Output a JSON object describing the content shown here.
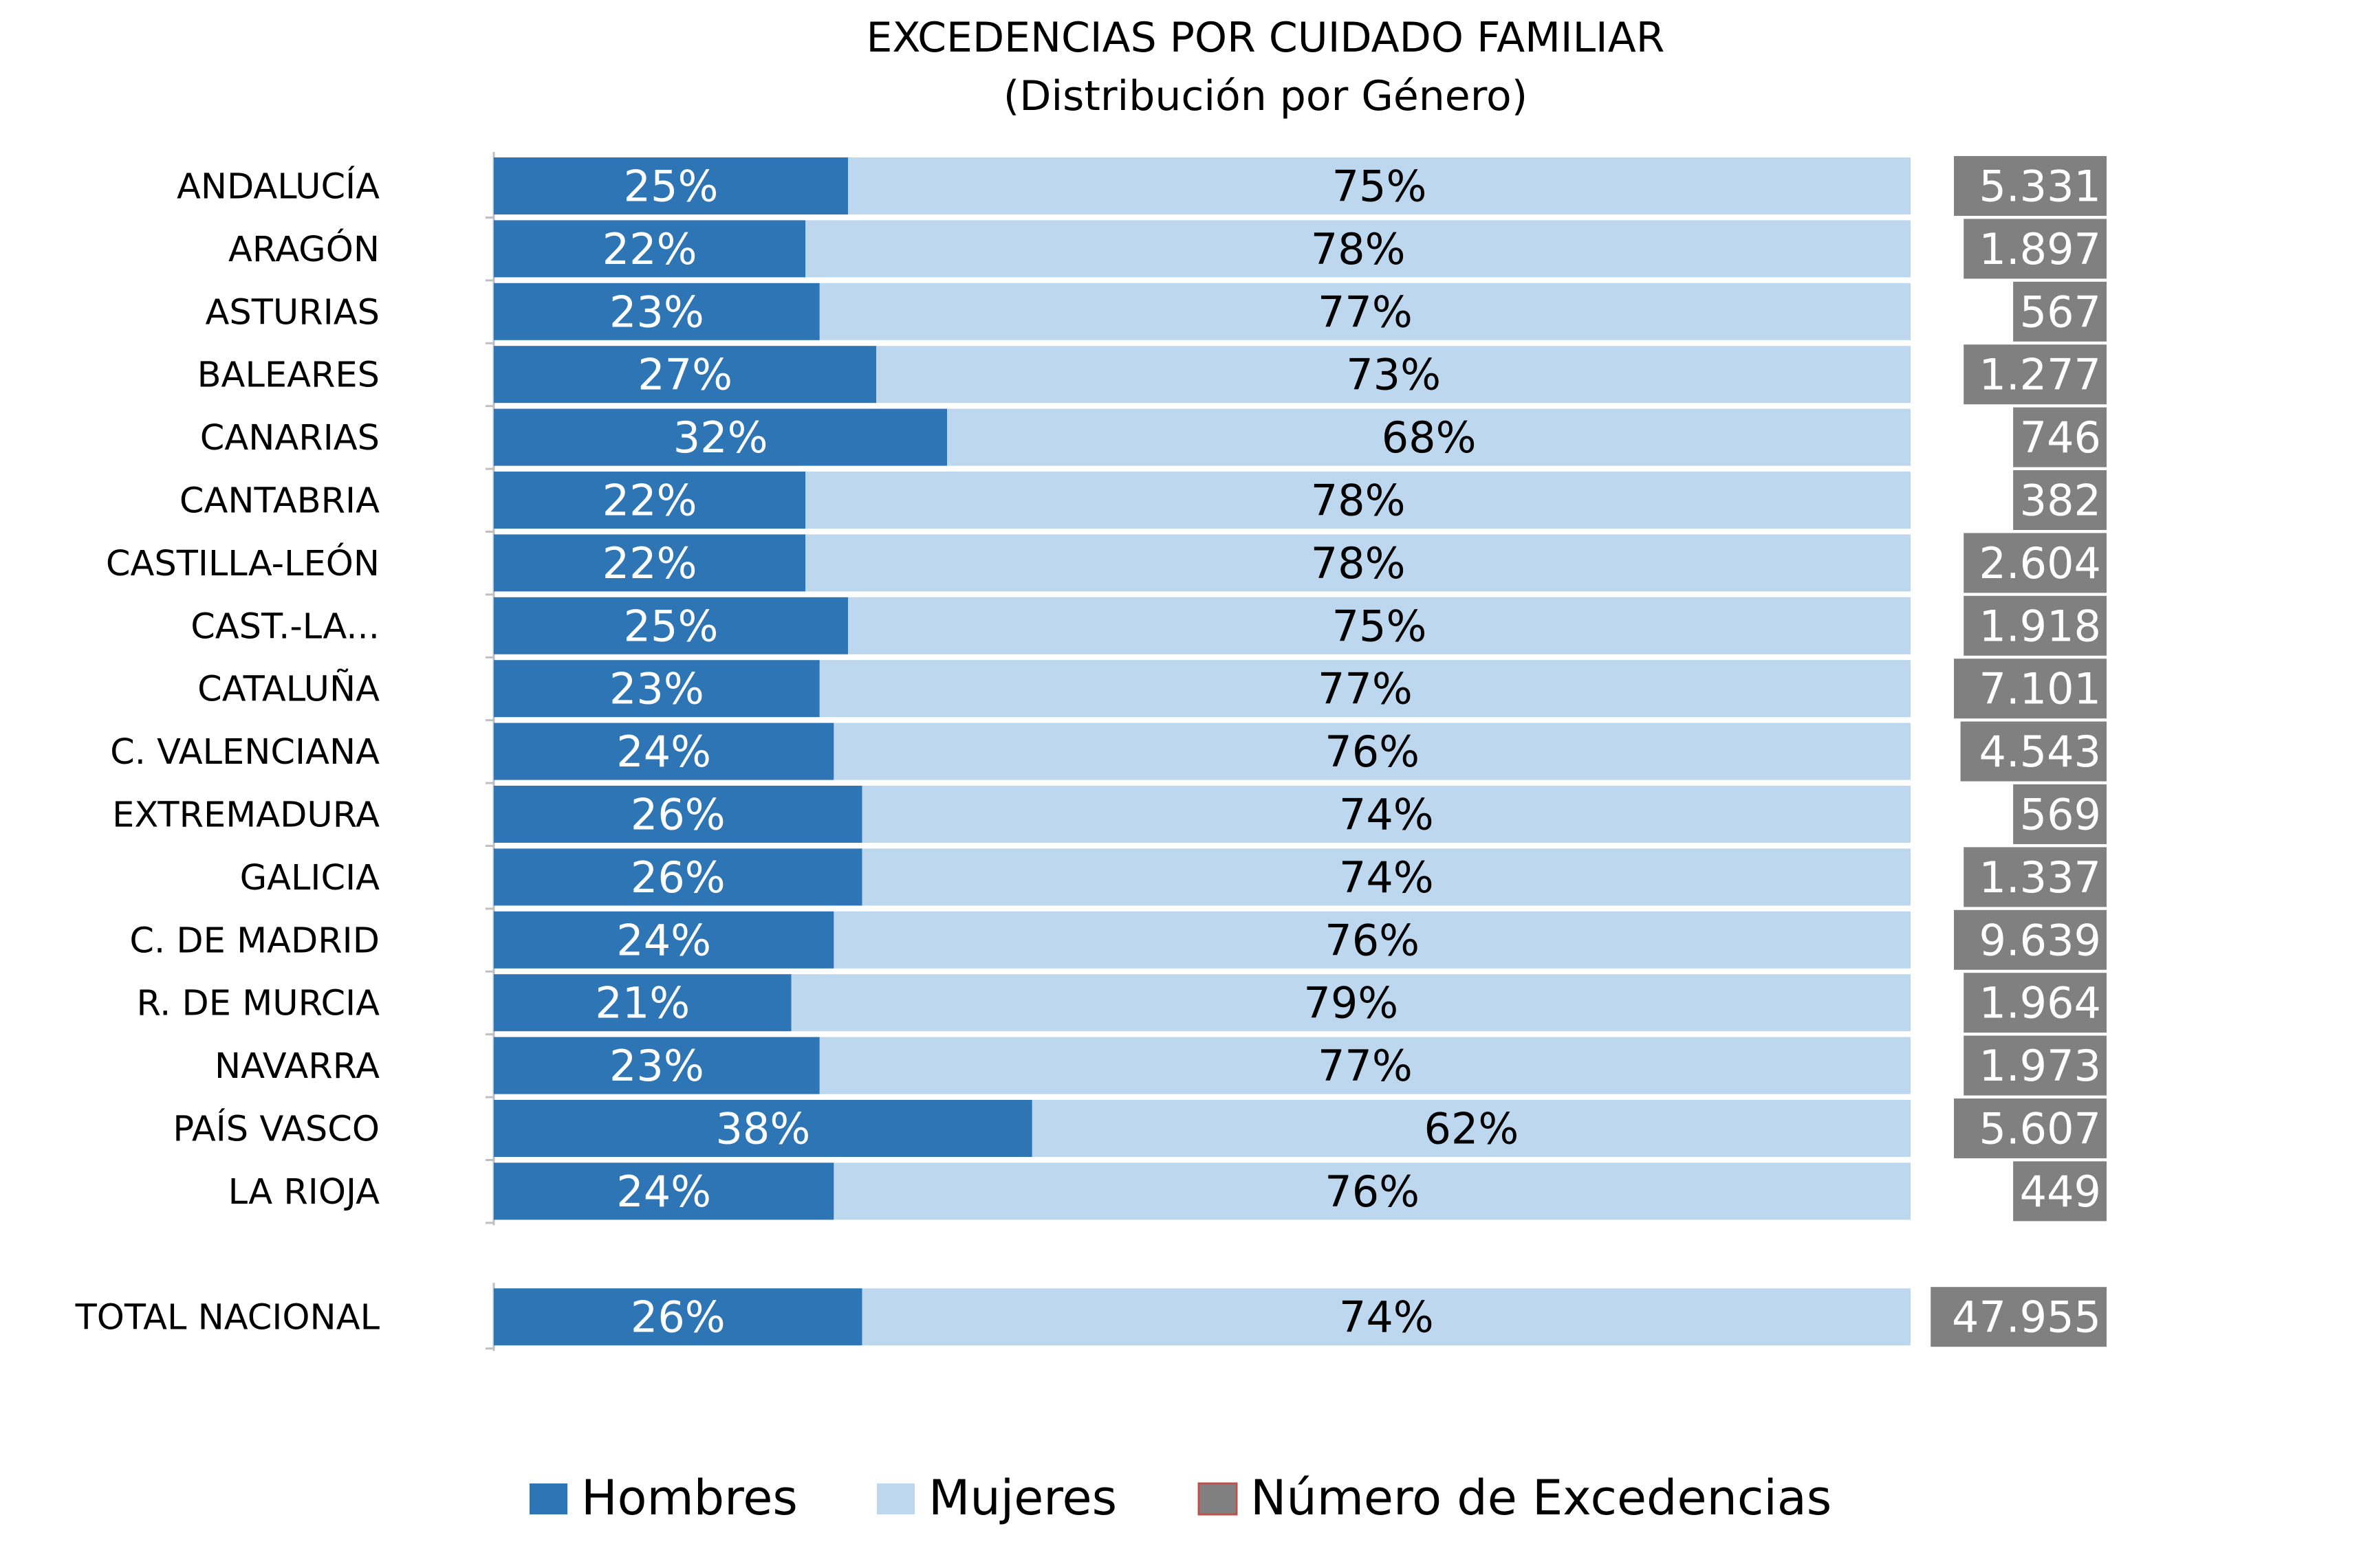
{
  "chart_data": {
    "type": "bar",
    "orientation": "horizontal",
    "stacked": "percent",
    "title": "EXCEDENCIAS POR CUIDADO FAMILIAR",
    "subtitle": "(Distribución por Género)",
    "categories": [
      "ANDALUCÍA",
      "ARAGÓN",
      "ASTURIAS",
      "BALEARES",
      "CANARIAS",
      "CANTABRIA",
      "CASTILLA-LEÓN",
      "CAST.-LA...",
      "CATALUÑA",
      "C. VALENCIANA",
      "EXTREMADURA",
      "GALICIA",
      "C. DE MADRID",
      "R. DE MURCIA",
      "NAVARRA",
      "PAÍS VASCO",
      "LA RIOJA",
      "TOTAL NACIONAL"
    ],
    "series": [
      {
        "name": "Hombres",
        "color": "#2e75b6",
        "values": [
          25,
          22,
          23,
          27,
          32,
          22,
          22,
          25,
          23,
          24,
          26,
          26,
          24,
          21,
          23,
          38,
          24,
          26
        ],
        "labels": [
          "25%",
          "22%",
          "23%",
          "27%",
          "32%",
          "22%",
          "22%",
          "25%",
          "23%",
          "24%",
          "26%",
          "26%",
          "24%",
          "21%",
          "23%",
          "38%",
          "24%",
          "26%"
        ]
      },
      {
        "name": "Mujeres",
        "color": "#bdd7ee",
        "values": [
          75,
          78,
          77,
          73,
          68,
          78,
          78,
          75,
          77,
          76,
          74,
          74,
          76,
          79,
          77,
          62,
          76,
          74
        ],
        "labels": [
          "75%",
          "78%",
          "77%",
          "73%",
          "68%",
          "78%",
          "78%",
          "75%",
          "77%",
          "76%",
          "74%",
          "74%",
          "76%",
          "79%",
          "77%",
          "62%",
          "76%",
          "74%"
        ]
      },
      {
        "name": "Número de Excedencias",
        "color": "#808080",
        "values": [
          5331,
          1897,
          567,
          1277,
          746,
          382,
          2604,
          1918,
          7101,
          4543,
          569,
          1337,
          9639,
          1964,
          1973,
          5607,
          449,
          47955
        ],
        "labels": [
          "5.331",
          "1.897",
          "567",
          "1.277",
          "746",
          "382",
          "2.604",
          "1.918",
          "7.101",
          "4.543",
          "569",
          "1.337",
          "9.639",
          "1.964",
          "1.973",
          "5.607",
          "449",
          "47.955"
        ]
      }
    ],
    "xlim": [
      0,
      100
    ],
    "legend": "bottom",
    "grid": false
  }
}
